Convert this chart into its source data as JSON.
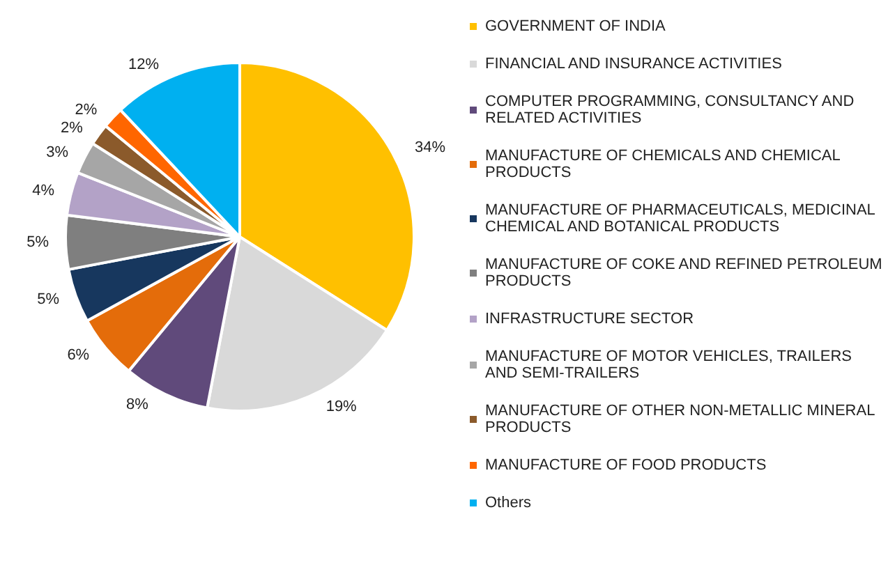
{
  "chart_data": {
    "type": "pie",
    "categories": [
      "GOVERNMENT OF INDIA",
      "FINANCIAL AND INSURANCE ACTIVITIES",
      "COMPUTER PROGRAMMING, CONSULTANCY AND RELATED ACTIVITIES",
      "MANUFACTURE OF CHEMICALS AND CHEMICAL PRODUCTS",
      "MANUFACTURE OF PHARMACEUTICALS, MEDICINAL CHEMICAL AND BOTANICAL PRODUCTS",
      "MANUFACTURE OF COKE AND REFINED PETROLEUM PRODUCTS",
      "INFRASTRUCTURE SECTOR",
      "MANUFACTURE OF MOTOR VEHICLES, TRAILERS AND SEMI-TRAILERS",
      "MANUFACTURE OF OTHER NON-METALLIC MINERAL PRODUCTS",
      "MANUFACTURE OF FOOD PRODUCTS",
      "Others"
    ],
    "values": [
      34,
      19,
      8,
      6,
      5,
      5,
      4,
      3,
      2,
      2,
      12
    ],
    "value_labels": [
      "34%",
      "19%",
      "8%",
      "6%",
      "5%",
      "5%",
      "4%",
      "3%",
      "2%",
      "2%",
      "12%"
    ],
    "colors": [
      "#ffc000",
      "#d9d9d9",
      "#604a7b",
      "#e46c0a",
      "#17375e",
      "#7f7f7f",
      "#b3a2c7",
      "#a6a6a6",
      "#8b5a2b",
      "#ff6600",
      "#00b0f0"
    ],
    "legend": "right"
  }
}
